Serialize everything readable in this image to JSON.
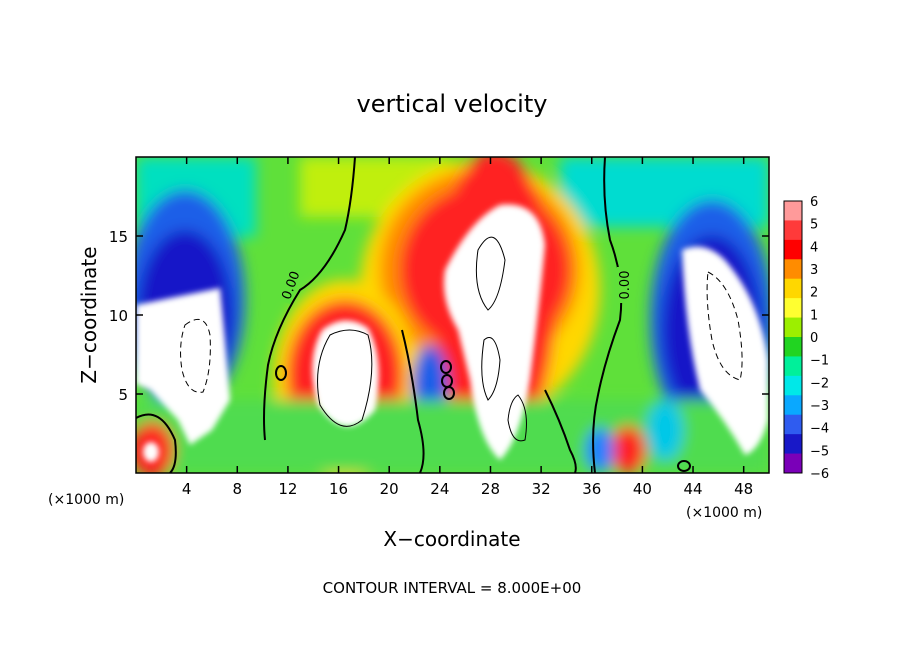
{
  "chart_data": {
    "type": "heatmap",
    "title": "vertical velocity",
    "xlabel": "X−coordinate",
    "ylabel": "Z−coordinate",
    "x_unit_left": "(×1000 m)",
    "x_unit_right": "(×1000 m)",
    "xlim": [
      0,
      50
    ],
    "ylim": [
      0,
      20
    ],
    "x_ticks": [
      4,
      8,
      12,
      16,
      20,
      24,
      28,
      32,
      36,
      40,
      44,
      48
    ],
    "x_tick_labels": [
      "4",
      "8",
      "12",
      "16",
      "20",
      "24",
      "28",
      "32",
      "36",
      "40",
      "44",
      "48"
    ],
    "y_ticks": [
      5,
      10,
      15
    ],
    "y_tick_labels": [
      "5",
      "10",
      "15"
    ],
    "colorbar": {
      "levels": [
        6,
        5,
        4,
        3,
        2,
        1,
        0,
        -1,
        -2,
        -3,
        -4,
        -5,
        -6
      ],
      "level_labels": [
        "6",
        "5",
        "4",
        "3",
        "2",
        "1",
        "0",
        "−1",
        "−2",
        "−3",
        "−4",
        "−5",
        "−6"
      ],
      "colors": [
        "#ff9a9a",
        "#ff3a3a",
        "#ff0000",
        "#ff8c00",
        "#ffd700",
        "#ffff30",
        "#9cef00",
        "#21d421",
        "#00f09a",
        "#00e8e8",
        "#0aa8ff",
        "#2f5cf0",
        "#1818c8",
        "#7a00b8"
      ]
    },
    "contour_labels": [
      {
        "text": "0.00",
        "x": 12.3,
        "y": 11.5
      },
      {
        "text": "0.00",
        "x": 38.6,
        "y": 11.5
      }
    ],
    "features": [
      {
        "kind": "updraft",
        "x": 28.5,
        "z": 10.5,
        "peak": 8
      },
      {
        "kind": "updraft",
        "x": 16.5,
        "z": 7.5,
        "peak": 8
      },
      {
        "kind": "updraft",
        "x": 1.0,
        "z": 1.8,
        "peak": 6
      },
      {
        "kind": "updraft",
        "x": 39.0,
        "z": 1.8,
        "peak": 5
      },
      {
        "kind": "downdraft",
        "x": 4.5,
        "z": 8.5,
        "peak": -8
      },
      {
        "kind": "downdraft",
        "x": 45.8,
        "z": 9.0,
        "peak": -8
      },
      {
        "kind": "downdraft",
        "x": 24.2,
        "z": 5.5,
        "peak": -5
      }
    ]
  },
  "footer": {
    "contour_interval": "CONTOUR INTERVAL = 8.000E+00"
  }
}
